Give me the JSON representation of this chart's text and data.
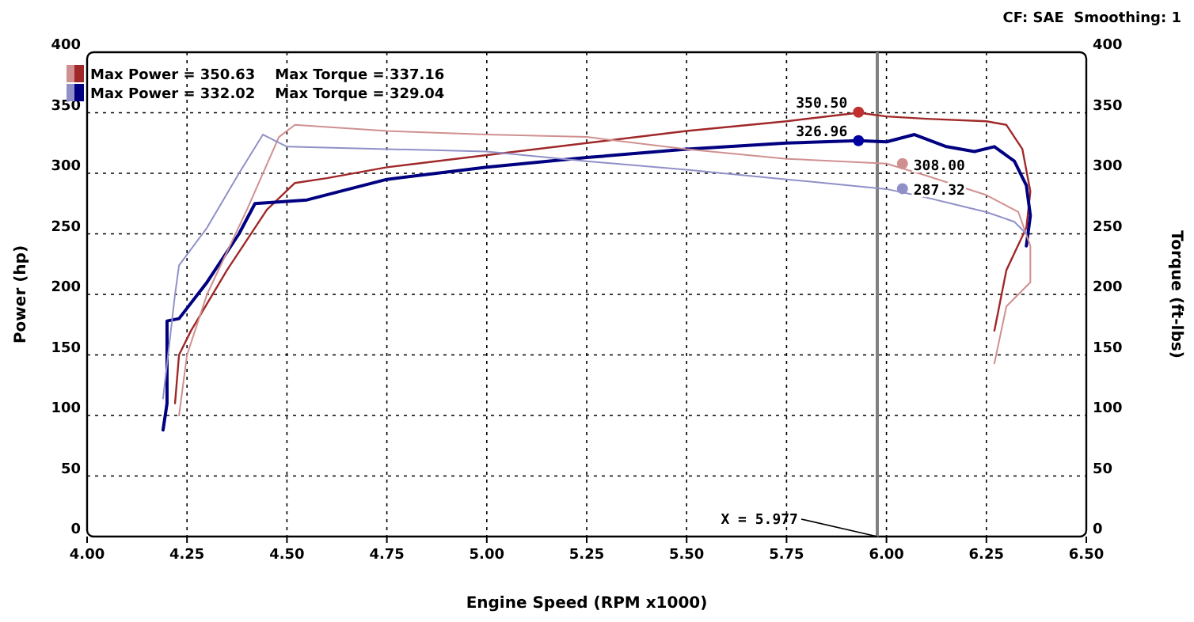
{
  "chart_data": {
    "type": "line",
    "xlabel": "Engine Speed (RPM x1000)",
    "ylabel": "Power (hp)",
    "y2label": "Torque (ft-lbs)",
    "xlim": [
      4.0,
      6.5
    ],
    "xticks": [
      {
        "value": 4.0,
        "label": "4.00"
      },
      {
        "value": 4.25,
        "label": "4.25"
      },
      {
        "value": 4.5,
        "label": "4.50"
      },
      {
        "value": 4.75,
        "label": "4.75"
      },
      {
        "value": 5.0,
        "label": "5.00"
      },
      {
        "value": 5.25,
        "label": "5.25"
      },
      {
        "value": 5.5,
        "label": "5.50"
      },
      {
        "value": 5.75,
        "label": "5.75"
      },
      {
        "value": 6.0,
        "label": "6.00"
      },
      {
        "value": 6.25,
        "label": "6.25"
      },
      {
        "value": 6.5,
        "label": "6.50"
      }
    ],
    "ylim": [
      0,
      400
    ],
    "yticks": [
      0,
      50,
      100,
      150,
      200,
      250,
      300,
      350,
      400
    ],
    "y2lim": [
      0,
      400
    ],
    "y2ticks": [
      0,
      50,
      100,
      150,
      200,
      250,
      300,
      350,
      400
    ],
    "grid": true,
    "legend": "top left",
    "series": [
      {
        "name": "Max Power = 350.63    Max Torque = 337.16",
        "color": "#a02828",
        "x": [
          4.22,
          4.23,
          4.26,
          4.35,
          4.45,
          4.52,
          4.6,
          4.75,
          5.0,
          5.25,
          5.5,
          5.75,
          5.93,
          6.0,
          6.1,
          6.25,
          6.3,
          6.34,
          6.36,
          6.35,
          6.3,
          6.27
        ],
        "values": [
          110,
          150,
          170,
          220,
          270,
          292,
          296,
          305,
          315,
          325,
          335,
          343,
          350,
          347,
          345,
          343,
          340,
          320,
          285,
          255,
          220,
          170
        ]
      },
      {
        "name": "Max Power = 332.02    Max Torque = 329.04",
        "color": "#000080",
        "x": [
          4.19,
          4.2,
          4.2,
          4.23,
          4.3,
          4.38,
          4.42,
          4.55,
          4.75,
          5.0,
          5.25,
          5.5,
          5.75,
          5.93,
          6.0,
          6.07,
          6.15,
          6.22,
          6.27,
          6.32,
          6.35,
          6.36,
          6.35
        ],
        "values": [
          88,
          110,
          178,
          180,
          210,
          250,
          275,
          278,
          295,
          305,
          313,
          320,
          325,
          327,
          326,
          332,
          322,
          318,
          322,
          310,
          290,
          265,
          240
        ]
      },
      {
        "color": "#d09090",
        "axis": "y2",
        "x": [
          4.23,
          4.25,
          4.3,
          4.4,
          4.48,
          4.52,
          4.75,
          5.0,
          5.25,
          5.5,
          5.75,
          6.0,
          6.1,
          6.25,
          6.33,
          6.36,
          6.36,
          6.3,
          6.27
        ],
        "values": [
          100,
          150,
          200,
          270,
          330,
          340,
          335,
          332,
          330,
          320,
          312,
          308,
          298,
          282,
          268,
          240,
          210,
          190,
          143
        ]
      },
      {
        "color": "#9090c8",
        "axis": "y2",
        "x": [
          4.19,
          4.22,
          4.23,
          4.3,
          4.38,
          4.44,
          4.5,
          4.75,
          5.0,
          5.25,
          5.5,
          5.75,
          6.0,
          6.1,
          6.25,
          6.32,
          6.35
        ],
        "values": [
          114,
          200,
          224,
          255,
          300,
          332,
          322,
          320,
          318,
          310,
          303,
          295,
          287,
          280,
          268,
          260,
          250
        ]
      },
      {
        "type": "scatter",
        "color": "#c03030",
        "x": [
          5.93
        ],
        "values": [
          350.5
        ],
        "value_labels": [
          "350.50"
        ]
      },
      {
        "type": "scatter",
        "color": "#0000a0",
        "x": [
          5.93
        ],
        "values": [
          326.96
        ],
        "value_labels": [
          "326.96"
        ]
      },
      {
        "type": "scatter",
        "color": "#d09090",
        "axis": "y2",
        "x": [
          6.04
        ],
        "values": [
          308.0
        ],
        "value_labels": [
          "308.00"
        ]
      },
      {
        "type": "scatter",
        "color": "#9090c8",
        "axis": "y2",
        "x": [
          6.04
        ],
        "values": [
          287.32
        ],
        "value_labels": [
          "287.32"
        ]
      }
    ],
    "ref_lines": [
      {
        "axis": "x",
        "value": 5.977,
        "label": "X = 5.977",
        "color": "#808080"
      }
    ],
    "annotations": [
      "CF: SAE  Smoothing: 1"
    ]
  }
}
